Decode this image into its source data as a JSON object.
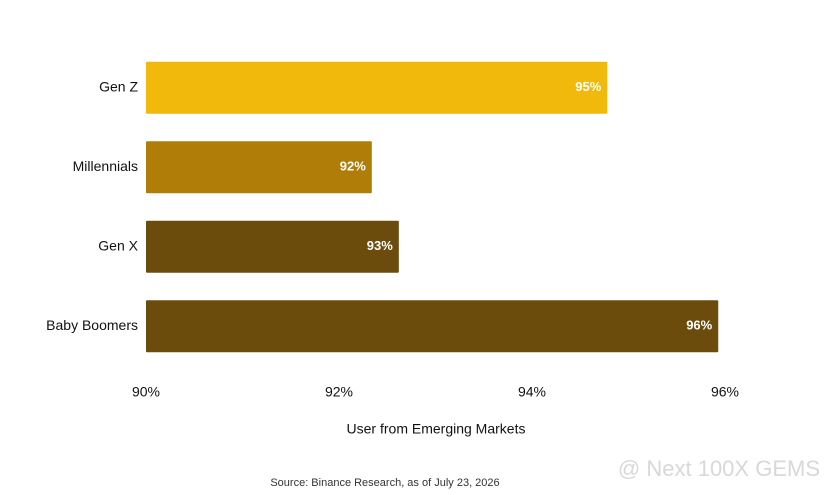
{
  "chart_data": {
    "type": "bar",
    "orientation": "horizontal",
    "categories": [
      "Gen Z",
      "Millennials",
      "Gen X",
      "Baby Boomers"
    ],
    "values": [
      94.78,
      92.34,
      92.62,
      95.93
    ],
    "value_labels": [
      "95%",
      "92%",
      "93%",
      "96%"
    ],
    "colors": [
      "#f0b90b",
      "#b07d08",
      "#6b4c0c",
      "#6b4c0c"
    ],
    "xlim": [
      90,
      96
    ],
    "xticks": [
      {
        "value": 90,
        "label": "90%"
      },
      {
        "value": 92,
        "label": "92%"
      },
      {
        "value": 94,
        "label": "94%"
      },
      {
        "value": 96,
        "label": "96%"
      }
    ],
    "xlabel": "User from Emerging Markets",
    "source": "Source: Binance Research, as of July 23, 2026",
    "watermark": "@ Next 100X GEMS"
  }
}
